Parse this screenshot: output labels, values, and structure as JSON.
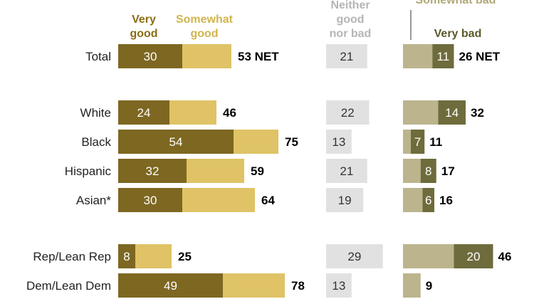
{
  "chart_data": {
    "type": "bar",
    "stacked": true,
    "legend": {
      "very_good": "Very\ngood",
      "somewhat_good": "Somewhat\ngood",
      "neither": "Neither\ngood\nnor bad",
      "somewhat_bad": "Somewhat bad",
      "very_bad": "Very bad"
    },
    "colors": {
      "very_good": "#7d6721",
      "somewhat_good": "#dfc366",
      "neither": "#e1e1e1",
      "somewhat_bad": "#bcb48d",
      "very_bad": "#6e6c3c",
      "very_good_header": "#8a6d14",
      "somewhat_good_header": "#d1b44e",
      "neither_header": "#b5b5b5",
      "somewhat_bad_header": "#b0a878",
      "very_bad_header": "#5c5a2c"
    },
    "net_suffix": "NET",
    "categories": [
      "Total",
      "White",
      "Black",
      "Hispanic",
      "Asian*",
      "Rep/Lean Rep",
      "Dem/Lean Dem"
    ],
    "very_good": [
      30,
      24,
      54,
      32,
      30,
      8,
      49
    ],
    "good_net": [
      53,
      46,
      75,
      59,
      64,
      25,
      78
    ],
    "neither": [
      21,
      22,
      13,
      21,
      19,
      29,
      13
    ],
    "very_bad": [
      11,
      14,
      7,
      8,
      6,
      20,
      null
    ],
    "bad_net": [
      26,
      32,
      11,
      17,
      16,
      46,
      9
    ],
    "show_net_suffix": [
      true,
      false,
      false,
      false,
      false,
      false,
      false
    ]
  }
}
